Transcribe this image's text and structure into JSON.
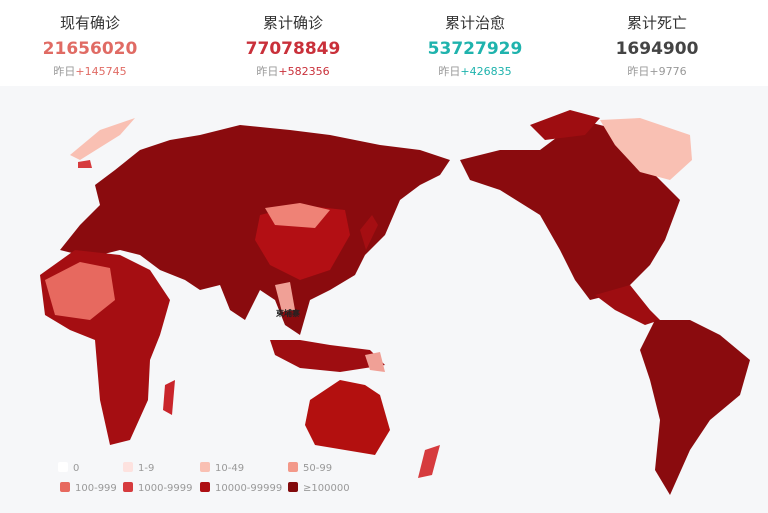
{
  "stats": [
    {
      "title": "现有确诊",
      "value": "21656020",
      "delta_prefix": "昨日",
      "delta": "+145745",
      "color": "#e06b64"
    },
    {
      "title": "累计确诊",
      "value": "77078849",
      "delta_prefix": "昨日",
      "delta": "+582356",
      "color": "#c9303a"
    },
    {
      "title": "累计治愈",
      "value": "53727929",
      "delta_prefix": "昨日",
      "delta": "+426835",
      "color": "#1fb3ad"
    },
    {
      "title": "累计死亡",
      "value": "1694900",
      "delta_prefix": "昨日",
      "delta": "+9776",
      "color": "#444444"
    }
  ],
  "map": {
    "label": "柬埔寨"
  },
  "legend": [
    {
      "label": "0",
      "color": "#ffffff"
    },
    {
      "label": "1-9",
      "color": "#fde2df"
    },
    {
      "label": "10-49",
      "color": "#f9c0b3"
    },
    {
      "label": "50-99",
      "color": "#f3998a"
    },
    {
      "label": "100-999",
      "color": "#e7695f"
    },
    {
      "label": "1000-9999",
      "color": "#d63b3e"
    },
    {
      "label": "10000-99999",
      "color": "#ad0f13"
    },
    {
      "label": "≥100000",
      "color": "#820a0c"
    }
  ]
}
